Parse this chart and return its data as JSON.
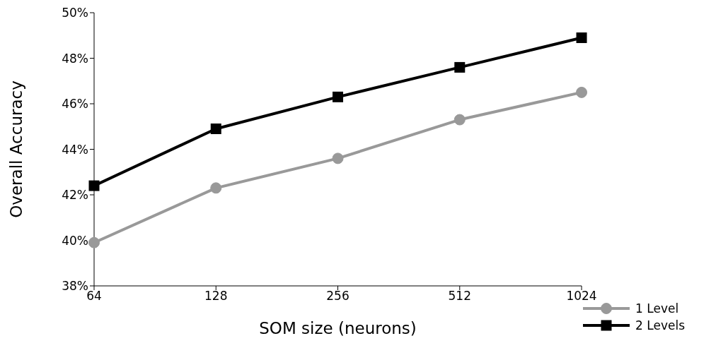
{
  "chart_data": {
    "type": "line",
    "xlabel": "SOM size (neurons)",
    "ylabel": "Overall Accuracy",
    "categories": [
      "64",
      "128",
      "256",
      "512",
      "1024"
    ],
    "series": [
      {
        "name": "1 Level",
        "color": "#999999",
        "marker": "circle",
        "values": [
          39.9,
          42.3,
          43.6,
          45.3,
          46.5
        ]
      },
      {
        "name": "2 Levels",
        "color": "#000000",
        "marker": "square",
        "values": [
          42.4,
          44.9,
          46.3,
          47.6,
          48.9
        ]
      }
    ],
    "ylim": [
      38,
      50
    ],
    "yticks": [
      {
        "value": 38,
        "label": "38%"
      },
      {
        "value": 40,
        "label": "40%"
      },
      {
        "value": 42,
        "label": "42%"
      },
      {
        "value": 44,
        "label": "44%"
      },
      {
        "value": 46,
        "label": "46%"
      },
      {
        "value": 48,
        "label": "48%"
      },
      {
        "value": 50,
        "label": "50%"
      }
    ],
    "grid": false,
    "legend": "bottom right",
    "line_style": "solid"
  }
}
